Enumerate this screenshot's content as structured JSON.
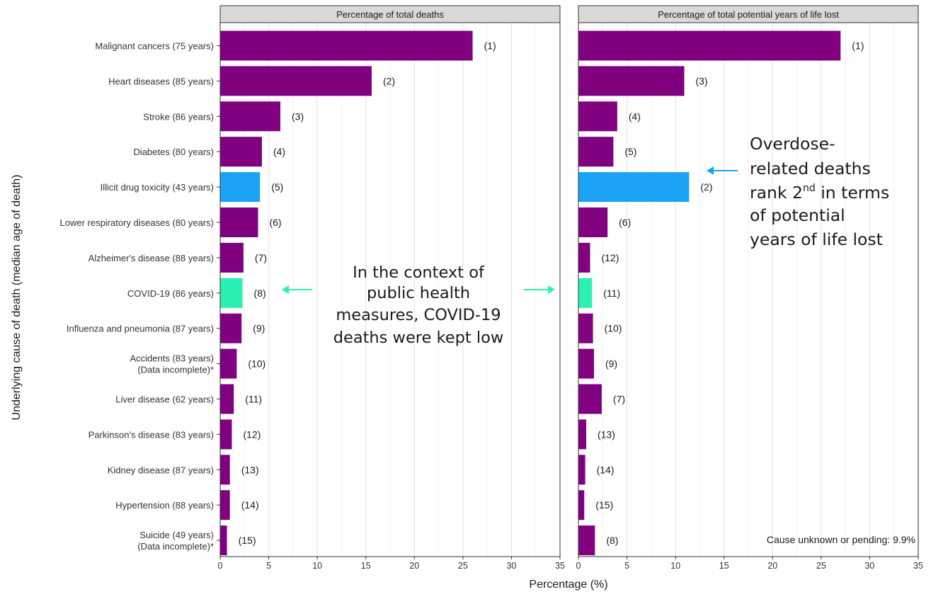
{
  "chart_data": {
    "type": "bar",
    "orientation": "horizontal",
    "ylabel": "Underlying cause of death (median age of death)",
    "xlabel": "Percentage (%)",
    "xlim": [
      0,
      35
    ],
    "xticks": [
      "0",
      "5",
      "10",
      "15",
      "20",
      "25",
      "30",
      "35"
    ],
    "grid": true,
    "categories": [
      "Malignant cancers (75 years)",
      "Heart diseases (85 years)",
      "Stroke (86 years)",
      "Diabetes (80 years)",
      "Illicit drug toxicity (43 years)",
      "Lower respiratory diseases (80 years)",
      "Alzheimer's disease (88 years)",
      "COVID-19 (86 years)",
      "Influenza and pneumonia (87 years)",
      "Accidents (83 years)\n(Data incomplete)*",
      "Liver disease (62 years)",
      "Parkinson's disease (83 years)",
      "Kidney disease (87 years)",
      "Hypertension (88 years)",
      "Suicide (49 years)\n(Data incomplete)*"
    ],
    "highlight_colors": {
      "default": "#800080",
      "Illicit drug toxicity (43 years)": "#1aa3f5",
      "COVID-19 (86 years)": "#2bf0b4"
    },
    "panels": [
      {
        "title": "Percentage of total deaths",
        "values": [
          26.0,
          15.6,
          6.2,
          4.3,
          4.1,
          3.9,
          2.4,
          2.3,
          2.2,
          1.7,
          1.4,
          1.2,
          1.0,
          1.0,
          0.7
        ],
        "ranks": [
          "(1)",
          "(2)",
          "(3)",
          "(4)",
          "(5)",
          "(6)",
          "(7)",
          "(8)",
          "(9)",
          "(10)",
          "(11)",
          "(12)",
          "(13)",
          "(14)",
          "(15)"
        ]
      },
      {
        "title": "Percentage of total potential years of life lost",
        "values": [
          27.0,
          10.9,
          4.0,
          3.6,
          11.4,
          3.0,
          1.2,
          1.4,
          1.5,
          1.6,
          2.4,
          0.8,
          0.7,
          0.6,
          1.7
        ],
        "ranks": [
          "(1)",
          "(3)",
          "(4)",
          "(5)",
          "(2)",
          "(6)",
          "(12)",
          "(11)",
          "(10)",
          "(9)",
          "(7)",
          "(13)",
          "(14)",
          "(15)",
          "(8)"
        ]
      }
    ],
    "annotations": {
      "covid_callout": [
        "In the context of",
        "public health",
        "measures, COVID-19",
        "deaths were kept low"
      ],
      "overdose_callout": {
        "line1": "Overdose-",
        "line2": "related deaths",
        "line3_prefix": "rank 2",
        "line3_superscript": "nd",
        "line3_suffix": " in terms",
        "line4": "of potential",
        "line5": "years of life lost"
      },
      "footnote": "Cause unknown or pending: 9.9%"
    }
  }
}
